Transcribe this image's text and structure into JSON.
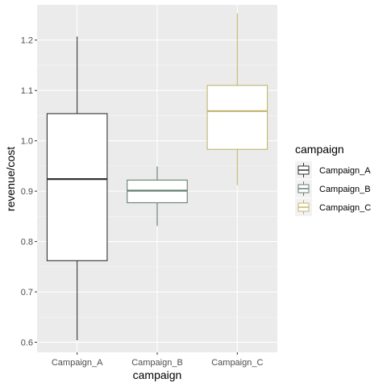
{
  "chart_data": {
    "type": "boxplot",
    "title": "",
    "xlabel": "campaign",
    "ylabel": "revenue/cost",
    "ylim": [
      0.58,
      1.27
    ],
    "yticks": [
      0.6,
      0.7,
      0.8,
      0.9,
      1.0,
      1.1,
      1.2
    ],
    "ytick_labels": [
      "0.6",
      "0.7",
      "0.8",
      "0.9",
      "1.0",
      "1.1",
      "1.2"
    ],
    "grid": true,
    "legend": {
      "title": "campaign",
      "placement": "right"
    },
    "categories": [
      "Campaign_A",
      "Campaign_B",
      "Campaign_C"
    ],
    "series": [
      {
        "name": "Campaign_A",
        "color": "#333333",
        "min": 0.604,
        "q1": 0.762,
        "median": 0.924,
        "q3": 1.054,
        "max": 1.207
      },
      {
        "name": "Campaign_B",
        "color": "#667f71",
        "min": 0.831,
        "q1": 0.877,
        "median": 0.901,
        "q3": 0.922,
        "max": 0.949
      },
      {
        "name": "Campaign_C",
        "color": "#c2b56c",
        "min": 0.912,
        "q1": 0.983,
        "median": 1.059,
        "q3": 1.11,
        "max": 1.253
      }
    ]
  }
}
